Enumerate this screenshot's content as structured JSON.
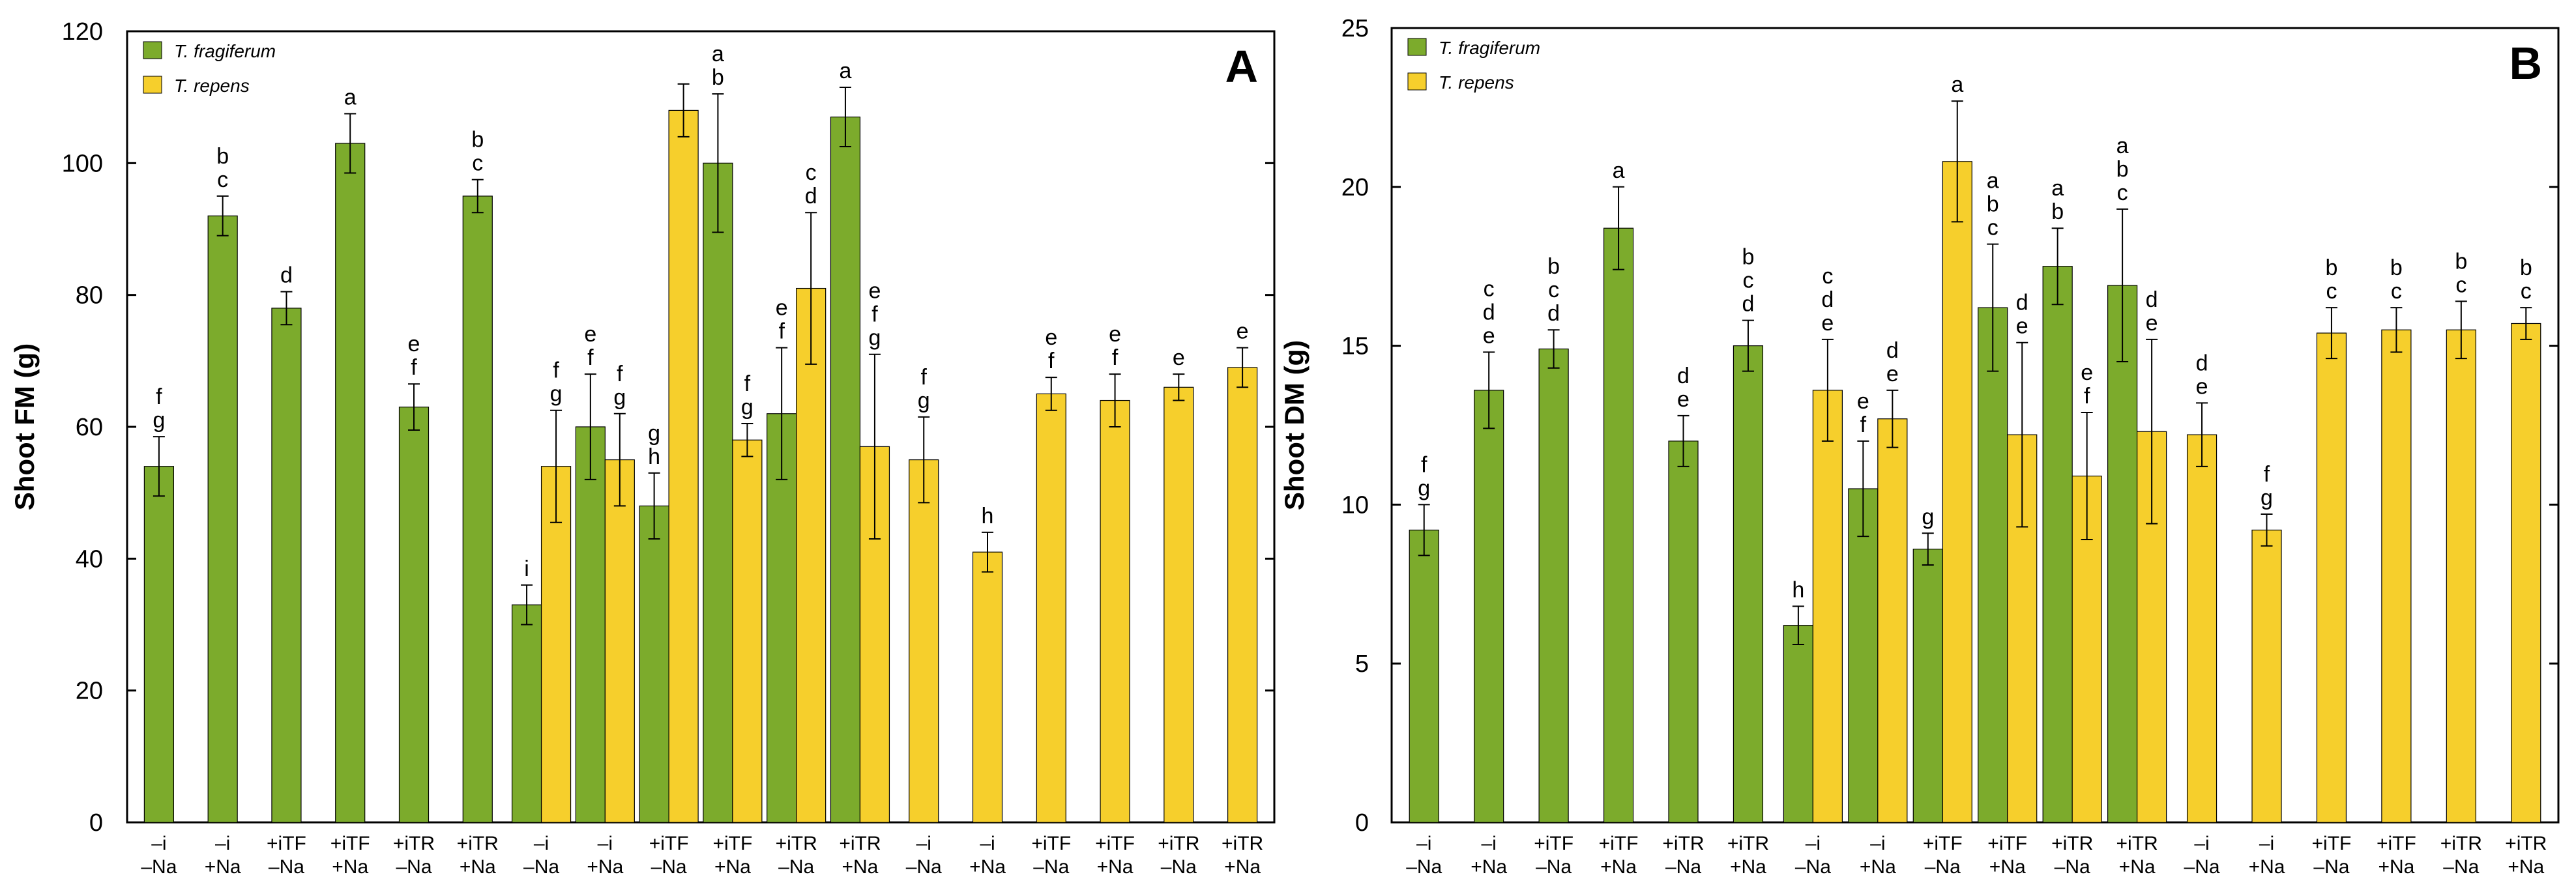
{
  "chart_data": [
    {
      "type": "bar",
      "panel_label": "A",
      "ylabel": "Shoot FM  (g)",
      "ylim": [
        0,
        120
      ],
      "yticks": [
        0,
        20,
        40,
        60,
        80,
        100,
        120
      ],
      "legend": {
        "placement": "top-left",
        "entries": [
          {
            "name": "T. fragiferum",
            "color": "#7cab2c"
          },
          {
            "name": "T. repens",
            "color": "#f6cf2c"
          }
        ]
      },
      "groups": [
        {
          "line1": "–i",
          "line2": "–Na",
          "bars": [
            {
              "s": "T. fragiferum",
              "v": 54,
              "e": 4.5,
              "l": [
                "f",
                "g"
              ]
            }
          ]
        },
        {
          "line1": "–i",
          "line2": "+Na",
          "bars": [
            {
              "s": "T. fragiferum",
              "v": 92,
              "e": 3,
              "l": [
                "b",
                "c"
              ]
            }
          ]
        },
        {
          "line1": "+iTF",
          "line2": "–Na",
          "bars": [
            {
              "s": "T. fragiferum",
              "v": 78,
              "e": 2.5,
              "l": [
                "d"
              ]
            }
          ]
        },
        {
          "line1": "+iTF",
          "line2": "+Na",
          "bars": [
            {
              "s": "T. fragiferum",
              "v": 103,
              "e": 4.5,
              "l": [
                "a"
              ]
            }
          ]
        },
        {
          "line1": "+iTR",
          "line2": "–Na",
          "bars": [
            {
              "s": "T. fragiferum",
              "v": 63,
              "e": 3.5,
              "l": [
                "e",
                "f"
              ]
            }
          ]
        },
        {
          "line1": "+iTR",
          "line2": "+Na",
          "bars": [
            {
              "s": "T. fragiferum",
              "v": 95,
              "e": 2.5,
              "l": [
                "b",
                "c"
              ]
            }
          ]
        },
        {
          "line1": "–i",
          "line2": "–Na",
          "bars": [
            {
              "s": "T. fragiferum",
              "v": 33,
              "e": 3,
              "l": [
                "i"
              ]
            },
            {
              "s": "T. repens",
              "v": 54,
              "e": 8.5,
              "l": [
                "f",
                "g"
              ]
            }
          ]
        },
        {
          "line1": "–i",
          "line2": "+Na",
          "bars": [
            {
              "s": "T. fragiferum",
              "v": 60,
              "e": 8,
              "l": [
                "e",
                "f"
              ]
            },
            {
              "s": "T. repens",
              "v": 55,
              "e": 7,
              "l": [
                "f",
                "g"
              ]
            }
          ]
        },
        {
          "line1": "+iTF",
          "line2": "–Na",
          "bars": [
            {
              "s": "T. fragiferum",
              "v": 48,
              "e": 5,
              "l": [
                "g",
                "h"
              ]
            },
            {
              "s": "T. repens",
              "v": 108,
              "e": 4,
              "l": []
            }
          ]
        },
        {
          "line1": "+iTF",
          "line2": "+Na",
          "bars": [
            {
              "s": "T. fragiferum",
              "v": 100,
              "e": 10.5,
              "l": [
                "a",
                "b"
              ]
            },
            {
              "s": "T. repens",
              "v": 58,
              "e": 2.5,
              "l": [
                "f",
                "g"
              ]
            }
          ]
        },
        {
          "line1": "+iTR",
          "line2": "–Na",
          "bars": [
            {
              "s": "T. fragiferum",
              "v": 62,
              "e": 10,
              "l": [
                "e",
                "f"
              ]
            },
            {
              "s": "T. repens",
              "v": 81,
              "e": 11.5,
              "l": [
                "c",
                "d"
              ]
            }
          ]
        },
        {
          "line1": "+iTR",
          "line2": "+Na",
          "bars": [
            {
              "s": "T. fragiferum",
              "v": 107,
              "e": 4.5,
              "l": [
                "a"
              ]
            },
            {
              "s": "T. repens",
              "v": 57,
              "e": 14,
              "l": [
                "e",
                "f",
                "g"
              ]
            }
          ]
        },
        {
          "line1": "–i",
          "line2": "–Na",
          "bars": [
            {
              "s": "T. repens",
              "v": 55,
              "e": 6.5,
              "l": [
                "f",
                "g"
              ]
            }
          ]
        },
        {
          "line1": "–i",
          "line2": "+Na",
          "bars": [
            {
              "s": "T. repens",
              "v": 41,
              "e": 3,
              "l": [
                "h"
              ]
            }
          ]
        },
        {
          "line1": "+iTF",
          "line2": "–Na",
          "bars": [
            {
              "s": "T. repens",
              "v": 65,
              "e": 2.5,
              "l": [
                "e",
                "f"
              ]
            }
          ]
        },
        {
          "line1": "+iTF",
          "line2": "+Na",
          "bars": [
            {
              "s": "T. repens",
              "v": 64,
              "e": 4,
              "l": [
                "e",
                "f"
              ]
            }
          ]
        },
        {
          "line1": "+iTR",
          "line2": "–Na",
          "bars": [
            {
              "s": "T. repens",
              "v": 66,
              "e": 2,
              "l": [
                "e"
              ]
            }
          ]
        },
        {
          "line1": "+iTR",
          "line2": "+Na",
          "bars": [
            {
              "s": "T. repens",
              "v": 69,
              "e": 3,
              "l": [
                "e"
              ]
            }
          ]
        }
      ]
    },
    {
      "type": "bar",
      "panel_label": "B",
      "ylabel": "Shoot DM  (g)",
      "ylim": [
        0,
        25
      ],
      "yticks": [
        0,
        5,
        10,
        15,
        20,
        25
      ],
      "legend": {
        "placement": "top-left",
        "entries": [
          {
            "name": "T. fragiferum",
            "color": "#7cab2c"
          },
          {
            "name": "T. repens",
            "color": "#f6cf2c"
          }
        ]
      },
      "groups": [
        {
          "line1": "–i",
          "line2": "–Na",
          "bars": [
            {
              "s": "T. fragiferum",
              "v": 9.2,
              "e": 0.8,
              "l": [
                "f",
                "g"
              ]
            }
          ]
        },
        {
          "line1": "–i",
          "line2": "+Na",
          "bars": [
            {
              "s": "T. fragiferum",
              "v": 13.6,
              "e": 1.2,
              "l": [
                "c",
                "d",
                "e"
              ]
            }
          ]
        },
        {
          "line1": "+iTF",
          "line2": "–Na",
          "bars": [
            {
              "s": "T. fragiferum",
              "v": 14.9,
              "e": 0.6,
              "l": [
                "b",
                "c",
                "d"
              ]
            }
          ]
        },
        {
          "line1": "+iTF",
          "line2": "+Na",
          "bars": [
            {
              "s": "T. fragiferum",
              "v": 18.7,
              "e": 1.3,
              "l": [
                "a"
              ]
            }
          ]
        },
        {
          "line1": "+iTR",
          "line2": "–Na",
          "bars": [
            {
              "s": "T. fragiferum",
              "v": 12.0,
              "e": 0.8,
              "l": [
                "d",
                "e"
              ]
            }
          ]
        },
        {
          "line1": "+iTR",
          "line2": "+Na",
          "bars": [
            {
              "s": "T. fragiferum",
              "v": 15.0,
              "e": 0.8,
              "l": [
                "b",
                "c",
                "d"
              ]
            }
          ]
        },
        {
          "line1": "–i",
          "line2": "–Na",
          "bars": [
            {
              "s": "T. fragiferum",
              "v": 6.2,
              "e": 0.6,
              "l": [
                "h"
              ]
            },
            {
              "s": "T. repens",
              "v": 13.6,
              "e": 1.6,
              "l": [
                "c",
                "d",
                "e"
              ]
            }
          ]
        },
        {
          "line1": "–i",
          "line2": "+Na",
          "bars": [
            {
              "s": "T. fragiferum",
              "v": 10.5,
              "e": 1.5,
              "l": [
                "e",
                "f"
              ]
            },
            {
              "s": "T. repens",
              "v": 12.7,
              "e": 0.9,
              "l": [
                "d",
                "e"
              ]
            }
          ]
        },
        {
          "line1": "+iTF",
          "line2": "–Na",
          "bars": [
            {
              "s": "T. fragiferum",
              "v": 8.6,
              "e": 0.5,
              "l": [
                "g"
              ]
            },
            {
              "s": "T. repens",
              "v": 20.8,
              "e": 1.9,
              "l": [
                "a"
              ]
            }
          ]
        },
        {
          "line1": "+iTF",
          "line2": "+Na",
          "bars": [
            {
              "s": "T. fragiferum",
              "v": 16.2,
              "e": 2.0,
              "l": [
                "a",
                "b",
                "c"
              ]
            },
            {
              "s": "T. repens",
              "v": 12.2,
              "e": 2.9,
              "l": [
                "d",
                "e"
              ]
            }
          ]
        },
        {
          "line1": "+iTR",
          "line2": "–Na",
          "bars": [
            {
              "s": "T. fragiferum",
              "v": 17.5,
              "e": 1.2,
              "l": [
                "a",
                "b"
              ]
            },
            {
              "s": "T. repens",
              "v": 10.9,
              "e": 2.0,
              "l": [
                "e",
                "f"
              ]
            }
          ]
        },
        {
          "line1": "+iTR",
          "line2": "+Na",
          "bars": [
            {
              "s": "T. fragiferum",
              "v": 16.9,
              "e": 2.4,
              "l": [
                "a",
                "b",
                "c"
              ]
            },
            {
              "s": "T. repens",
              "v": 12.3,
              "e": 2.9,
              "l": [
                "d",
                "e"
              ]
            }
          ]
        },
        {
          "line1": "–i",
          "line2": "–Na",
          "bars": [
            {
              "s": "T. repens",
              "v": 12.2,
              "e": 1.0,
              "l": [
                "d",
                "e"
              ]
            }
          ]
        },
        {
          "line1": "–i",
          "line2": "+Na",
          "bars": [
            {
              "s": "T. repens",
              "v": 9.2,
              "e": 0.5,
              "l": [
                "f",
                "g"
              ]
            }
          ]
        },
        {
          "line1": "+iTF",
          "line2": "–Na",
          "bars": [
            {
              "s": "T. repens",
              "v": 15.4,
              "e": 0.8,
              "l": [
                "b",
                "c"
              ]
            }
          ]
        },
        {
          "line1": "+iTF",
          "line2": "+Na",
          "bars": [
            {
              "s": "T. repens",
              "v": 15.5,
              "e": 0.7,
              "l": [
                "b",
                "c"
              ]
            }
          ]
        },
        {
          "line1": "+iTR",
          "line2": "–Na",
          "bars": [
            {
              "s": "T. repens",
              "v": 15.5,
              "e": 0.9,
              "l": [
                "b",
                "c"
              ]
            }
          ]
        },
        {
          "line1": "+iTR",
          "line2": "+Na",
          "bars": [
            {
              "s": "T. repens",
              "v": 15.7,
              "e": 0.5,
              "l": [
                "b",
                "c"
              ]
            }
          ]
        }
      ]
    }
  ]
}
